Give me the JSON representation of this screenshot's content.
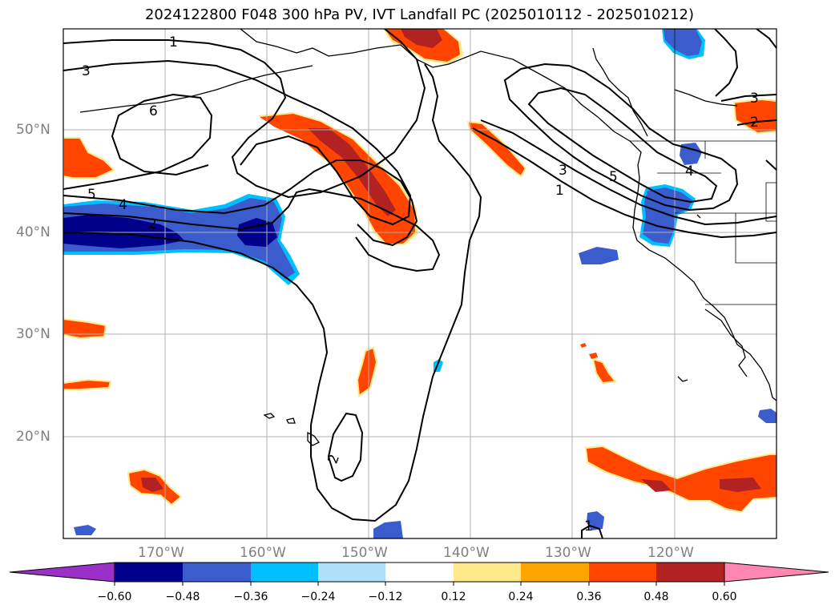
{
  "title": "2024122800 F048 300 hPa PV, IVT Landfall PC (2025010112 - 2025010212)",
  "lat_labels": [
    "50°N",
    "40°N",
    "30°N",
    "20°N"
  ],
  "lon_labels": [
    "170°W",
    "160°W",
    "150°W",
    "140°W",
    "130°W",
    "120°W"
  ],
  "colorbar": {
    "tick_labels": [
      "−0.60",
      "−0.48",
      "−0.36",
      "−0.24",
      "−0.12",
      "0.12",
      "0.24",
      "0.36",
      "0.48",
      "0.60"
    ],
    "colors": [
      "#9a30c8",
      "#00008b",
      "#3a5ccc",
      "#00bfff",
      "#aee0f8",
      "#ffffff",
      "#ffe98a",
      "#ffa500",
      "#ff4500",
      "#b22222",
      "#ff86b0"
    ]
  },
  "contour_labels": [
    "1",
    "3",
    "6",
    "5",
    "4",
    "2",
    "1",
    "3",
    "5",
    "4",
    "3",
    "2",
    "2",
    "1"
  ],
  "fill_colors": {
    "dark_blue": "#00008b",
    "blue": "#3a5ccc",
    "light_blue": "#00bfff",
    "red_orange": "#ff4500",
    "dark_red": "#b22222",
    "yellow": "#ffe98a"
  }
}
